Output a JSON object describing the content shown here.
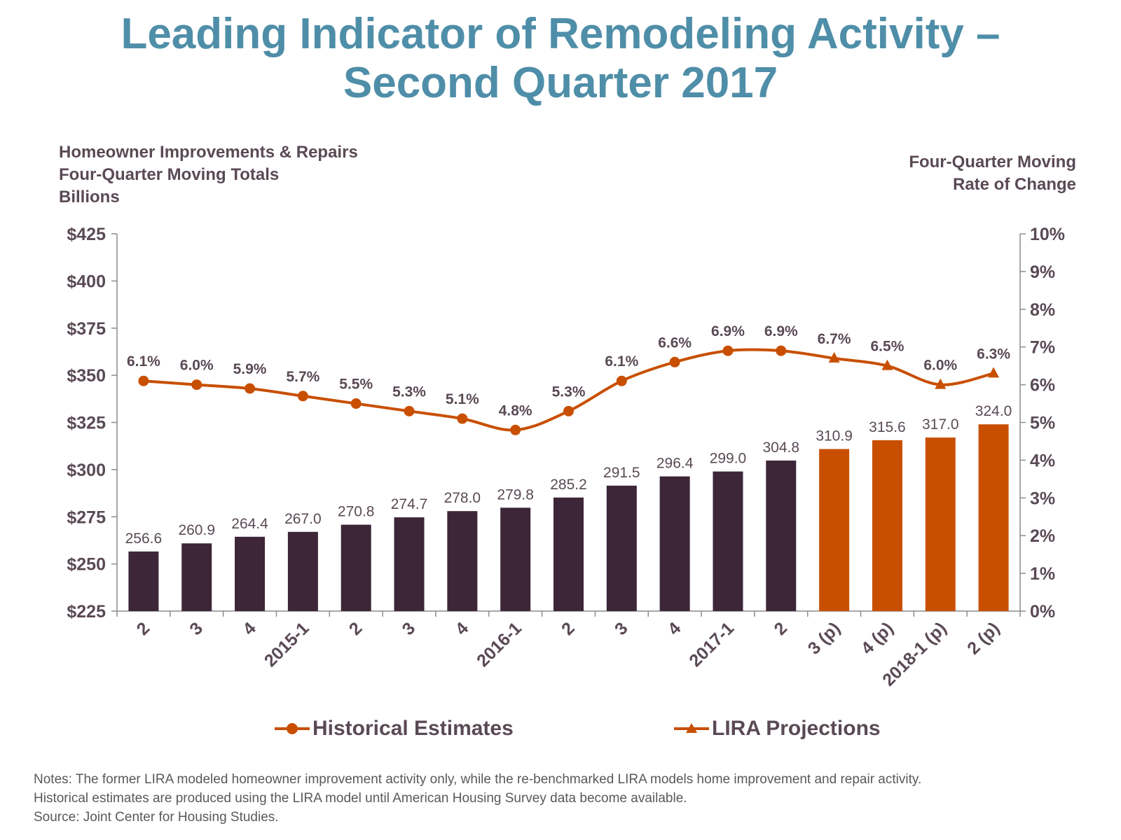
{
  "title_line1": "Leading Indicator of Remodeling Activity –",
  "title_line2": "Second Quarter 2017",
  "left_axis_title": [
    "Homeowner Improvements & Repairs",
    "Four-Quarter Moving Totals",
    "Billions"
  ],
  "right_axis_title": [
    "Four-Quarter Moving",
    "Rate of Change"
  ],
  "colors": {
    "title": "#4f8ea8",
    "historical_bar": "#3c2638",
    "projection_bar": "#c84f00",
    "line": "#c84f00",
    "text": "#5a4a55",
    "axis": "#8c8c8c"
  },
  "legend": {
    "historical": "Historical Estimates",
    "projections": "LIRA Projections"
  },
  "notes": [
    "Notes: The former LIRA modeled homeowner improvement activity only, while the re-benchmarked LIRA models home improvement and repair activity.",
    "Historical estimates are produced using the LIRA model until American Housing Survey data become available.",
    "Source: Joint Center for Housing Studies."
  ],
  "chart_data": {
    "type": "bar",
    "categories": [
      "2",
      "3",
      "4",
      "2015-1",
      "2",
      "3",
      "4",
      "2016-1",
      "2",
      "3",
      "4",
      "2017-1",
      "2",
      "3 (p)",
      "4 (p)",
      "2018-1 (p)",
      "2 (p)"
    ],
    "bar_values": [
      256.6,
      260.9,
      264.4,
      267.0,
      270.8,
      274.7,
      278.0,
      279.8,
      285.2,
      291.5,
      296.4,
      299.0,
      304.8,
      310.9,
      315.6,
      317.0,
      324.0
    ],
    "bar_labels": [
      "256.6",
      "260.9",
      "264.4",
      "267.0",
      "270.8",
      "274.7",
      "278.0",
      "279.8",
      "285.2",
      "291.5",
      "296.4",
      "299.0",
      "304.8",
      "310.9",
      "315.6",
      "317.0",
      "324.0"
    ],
    "projection_start_index": 13,
    "rate_values": [
      6.1,
      6.0,
      5.9,
      5.7,
      5.5,
      5.3,
      5.1,
      4.8,
      5.3,
      6.1,
      6.6,
      6.9,
      6.9,
      6.7,
      6.5,
      6.0,
      6.3
    ],
    "rate_labels": [
      "6.1%",
      "6.0%",
      "5.9%",
      "5.7%",
      "5.5%",
      "5.3%",
      "5.1%",
      "4.8%",
      "5.3%",
      "6.1%",
      "6.6%",
      "6.9%",
      "6.9%",
      "6.7%",
      "6.5%",
      "6.0%",
      "6.3%"
    ],
    "left_axis": {
      "ylim": [
        225,
        425
      ],
      "ticks": [
        "$225",
        "$250",
        "$275",
        "$300",
        "$325",
        "$350",
        "$375",
        "$400",
        "$425"
      ]
    },
    "right_axis": {
      "ylim": [
        0,
        10
      ],
      "ticks": [
        "0%",
        "1%",
        "2%",
        "3%",
        "4%",
        "5%",
        "6%",
        "7%",
        "8%",
        "9%",
        "10%"
      ]
    },
    "series": [
      {
        "name": "Historical Estimates",
        "marker": "circle"
      },
      {
        "name": "LIRA Projections",
        "marker": "triangle"
      }
    ],
    "grid": false,
    "legend_position": "bottom"
  }
}
